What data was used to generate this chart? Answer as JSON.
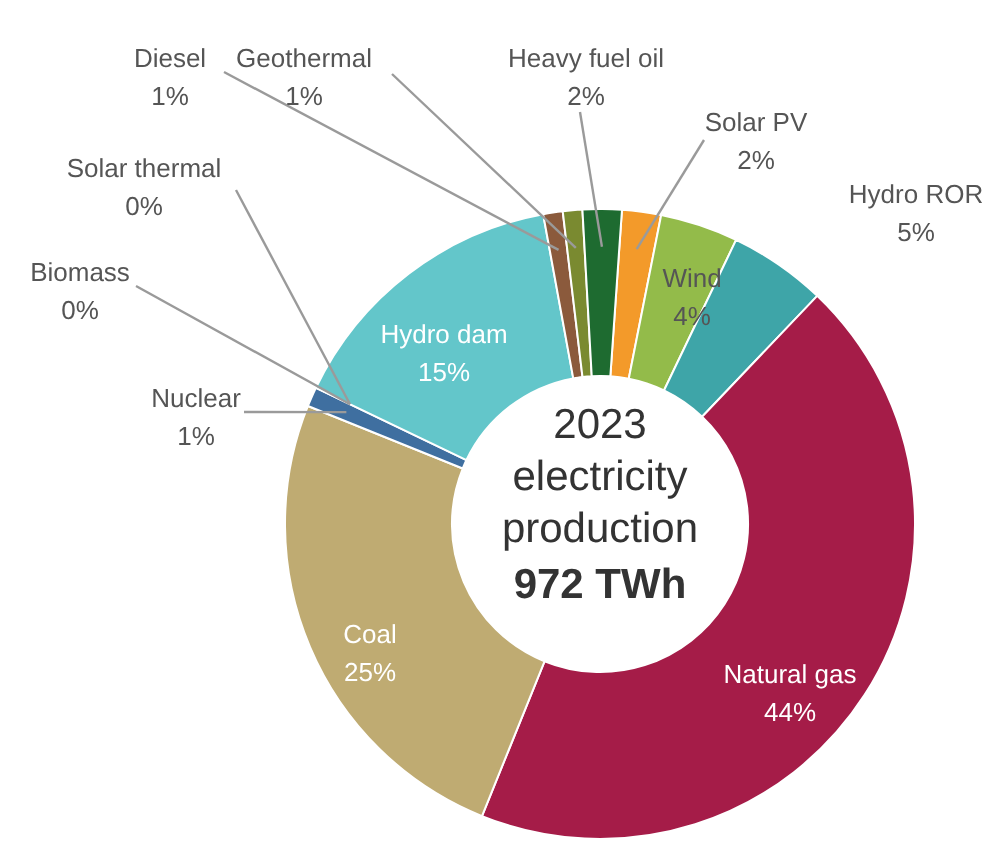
{
  "chart_data": {
    "type": "donut",
    "title": "2023 electricity production",
    "subtitle": "972 TWh",
    "categories": [
      "Solar PV",
      "Wind",
      "Hydro ROR",
      "Natural gas",
      "Coal",
      "Nuclear",
      "Biomass",
      "Solar thermal",
      "Hydro dam",
      "Diesel",
      "Geothermal",
      "Heavy fuel oil"
    ],
    "values": [
      2,
      4,
      5,
      44,
      25,
      1,
      0,
      0,
      15,
      1,
      1,
      2
    ],
    "value_labels": [
      "2%",
      "4%",
      "5%",
      "44%",
      "25%",
      "1%",
      "0%",
      "0%",
      "15%",
      "1%",
      "1%",
      "2%"
    ],
    "colors": [
      "#f39a2a",
      "#93bb4a",
      "#3ea5a8",
      "#a51c48",
      "#bfab72",
      "#3f6fa0",
      "#6b8e23",
      "#e0c040",
      "#63c6ca",
      "#8b5a3c",
      "#7a8a30",
      "#1e6b30"
    ],
    "legend": false
  }
}
